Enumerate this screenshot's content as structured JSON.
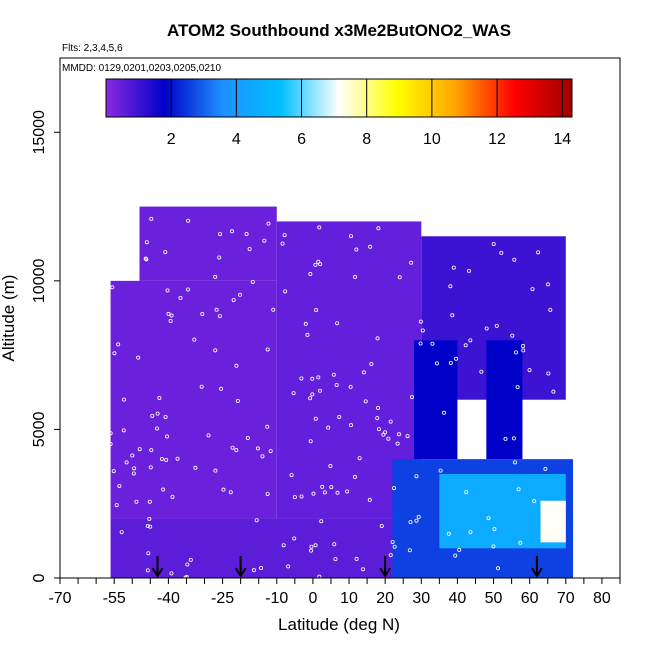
{
  "chart_data": {
    "type": "heatmap",
    "title": "ATOM2 Southbound x3Me2ButONO2_WAS",
    "subtitle_flights": "Flts: 2,3,4,5,6",
    "subtitle_dates": "MMDD: 0129,0201,0203,0205,0210",
    "xlabel": "Latitude (deg N)",
    "ylabel": "Altitude (m)",
    "xlim": [
      -70,
      85
    ],
    "ylim": [
      0,
      17500
    ],
    "x_tick_labels": [
      "-70",
      "-55",
      "-40",
      "-25",
      "-10",
      "0",
      "10",
      "20",
      "30",
      "40",
      "50",
      "60",
      "70",
      "80"
    ],
    "x_tick_values": [
      -70,
      -55,
      -40,
      -25,
      -10,
      0,
      10,
      20,
      30,
      40,
      50,
      60,
      70,
      80
    ],
    "x_minor_step": 5,
    "y_tick_labels": [
      "0",
      "5000",
      "10000",
      "15000"
    ],
    "y_tick_values": [
      0,
      5000,
      10000,
      15000
    ],
    "colorbar": {
      "min": 0,
      "max": 14.3,
      "tick_labels": [
        "2",
        "4",
        "6",
        "8",
        "10",
        "12",
        "14"
      ],
      "tick_values": [
        2,
        4,
        6,
        8,
        10,
        12,
        14
      ],
      "colors": [
        "#8a2be2",
        "#0000c8",
        "#1e90ff",
        "#00bfff",
        "#ffffff",
        "#ffff00",
        "#ffa500",
        "#ff0000",
        "#a00000"
      ]
    },
    "arrow_latitudes": [
      -43,
      -20,
      20,
      62
    ],
    "regions": [
      {
        "lat": [
          -56,
          72
        ],
        "alt": [
          0,
          2000
        ],
        "value": 0.6
      },
      {
        "lat": [
          -56,
          -10
        ],
        "alt": [
          2000,
          10000
        ],
        "value": 0.4
      },
      {
        "lat": [
          -48,
          -10
        ],
        "alt": [
          10000,
          12500
        ],
        "value": 0.4
      },
      {
        "lat": [
          -10,
          30
        ],
        "alt": [
          2000,
          12000
        ],
        "value": 0.5
      },
      {
        "lat": [
          30,
          70
        ],
        "alt": [
          6000,
          11500
        ],
        "value": 1.0
      },
      {
        "lat": [
          28,
          40
        ],
        "alt": [
          4000,
          8000
        ],
        "value": 1.8
      },
      {
        "lat": [
          48,
          58
        ],
        "alt": [
          4000,
          8000
        ],
        "value": 1.8
      },
      {
        "lat": [
          22,
          72
        ],
        "alt": [
          0,
          4000
        ],
        "value": 2.6
      },
      {
        "lat": [
          35,
          70
        ],
        "alt": [
          1000,
          3500
        ],
        "value": 4.6
      },
      {
        "lat": [
          63,
          70
        ],
        "alt": [
          1200,
          2600
        ],
        "value": 7.2
      }
    ]
  }
}
